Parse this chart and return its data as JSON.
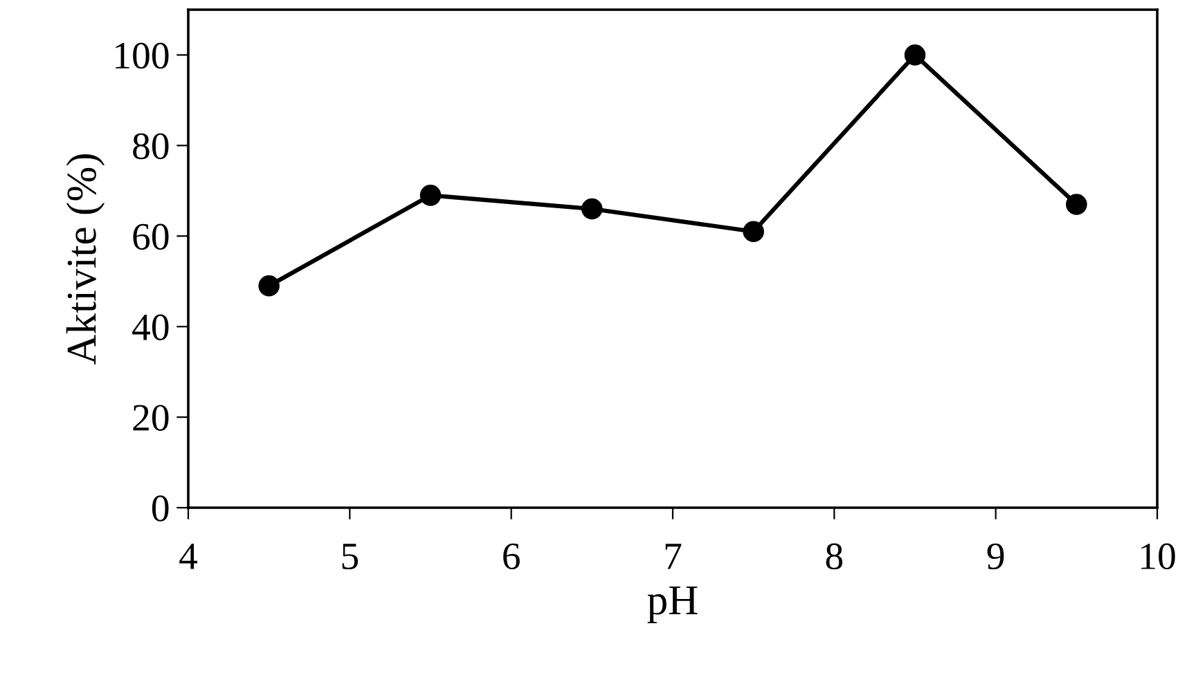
{
  "chart_data": {
    "type": "line",
    "xlabel": "pH",
    "ylabel": "Aktivite (%)",
    "x": [
      4.5,
      5.5,
      6.5,
      7.5,
      8.5,
      9.5
    ],
    "series": [
      {
        "color": "#000000",
        "values": [
          49,
          69,
          66,
          61,
          100,
          67
        ]
      }
    ],
    "xlim": [
      4,
      10
    ],
    "xticks": [
      4,
      5,
      6,
      7,
      8,
      9,
      10
    ],
    "ylim": [
      0,
      110
    ],
    "yticks": [
      0,
      20,
      40,
      60,
      80,
      100
    ],
    "grid": false,
    "legend": false,
    "marker": "circle",
    "line_style": "solid"
  }
}
